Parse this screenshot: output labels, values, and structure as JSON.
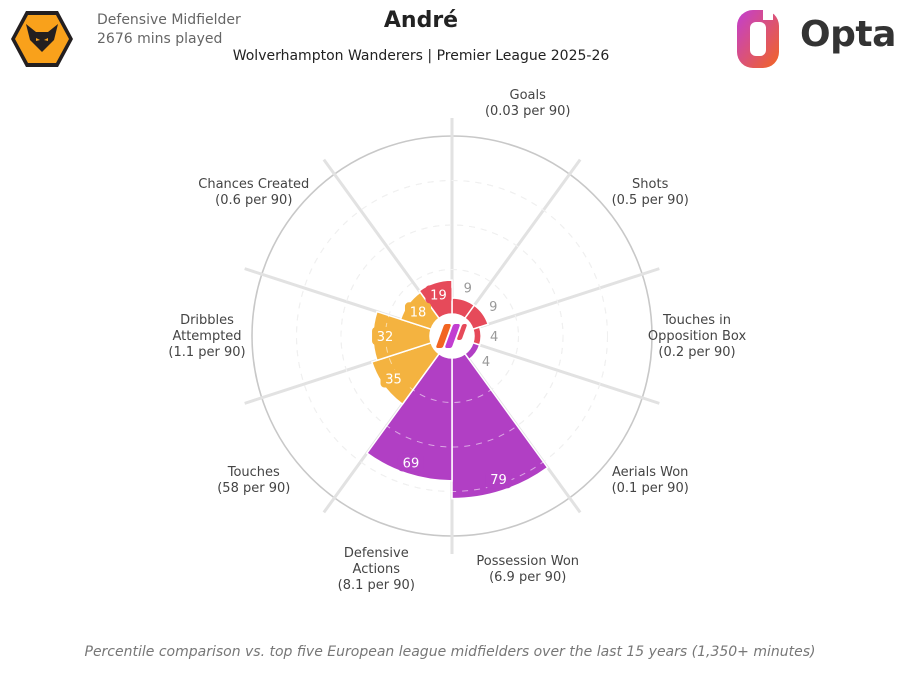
{
  "header": {
    "position": "Defensive Midfielder",
    "minutes": "2676 mins played",
    "player": "André",
    "subtitle": "Wolverhampton Wanderers | Premier League 2025-26",
    "brand": "Opta"
  },
  "footer": "Percentile comparison vs. top five European league midfielders over the last 15 years (1,350+ minutes)",
  "colors": {
    "attack": "#e64a5a",
    "possession": "#f4b340",
    "defense": "#b13fc4",
    "wolves_gold": "#f9a11b",
    "opta_orange": "#f26522",
    "opta_purple": "#c23ed1"
  },
  "chart_data": {
    "type": "radar",
    "scale_max": 100,
    "series": [
      {
        "label": "Goals",
        "sub": "(0.03 per 90)",
        "percentile": 9,
        "group": "attack"
      },
      {
        "label": "Shots",
        "sub": "(0.5 per 90)",
        "percentile": 9,
        "group": "attack"
      },
      {
        "label": "Touches in\nOpposition Box",
        "sub": "(0.2 per 90)",
        "percentile": 4,
        "group": "attack"
      },
      {
        "label": "Aerials Won",
        "sub": "(0.1 per 90)",
        "percentile": 4,
        "group": "defense"
      },
      {
        "label": "Possession Won",
        "sub": "(6.9 per 90)",
        "percentile": 79,
        "group": "defense"
      },
      {
        "label": "Defensive\nActions",
        "sub": "(8.1 per 90)",
        "percentile": 69,
        "group": "defense"
      },
      {
        "label": "Touches",
        "sub": "(58 per 90)",
        "percentile": 35,
        "group": "possession"
      },
      {
        "label": "Dribbles\nAttempted",
        "sub": "(1.1 per 90)",
        "percentile": 32,
        "group": "possession"
      },
      {
        "label": "Chances Created",
        "sub": "(0.6 per 90)",
        "percentile": 18,
        "group": "possession"
      },
      {
        "label": "Goals",
        "sub": "",
        "percentile": 19,
        "group": "attack"
      }
    ]
  }
}
